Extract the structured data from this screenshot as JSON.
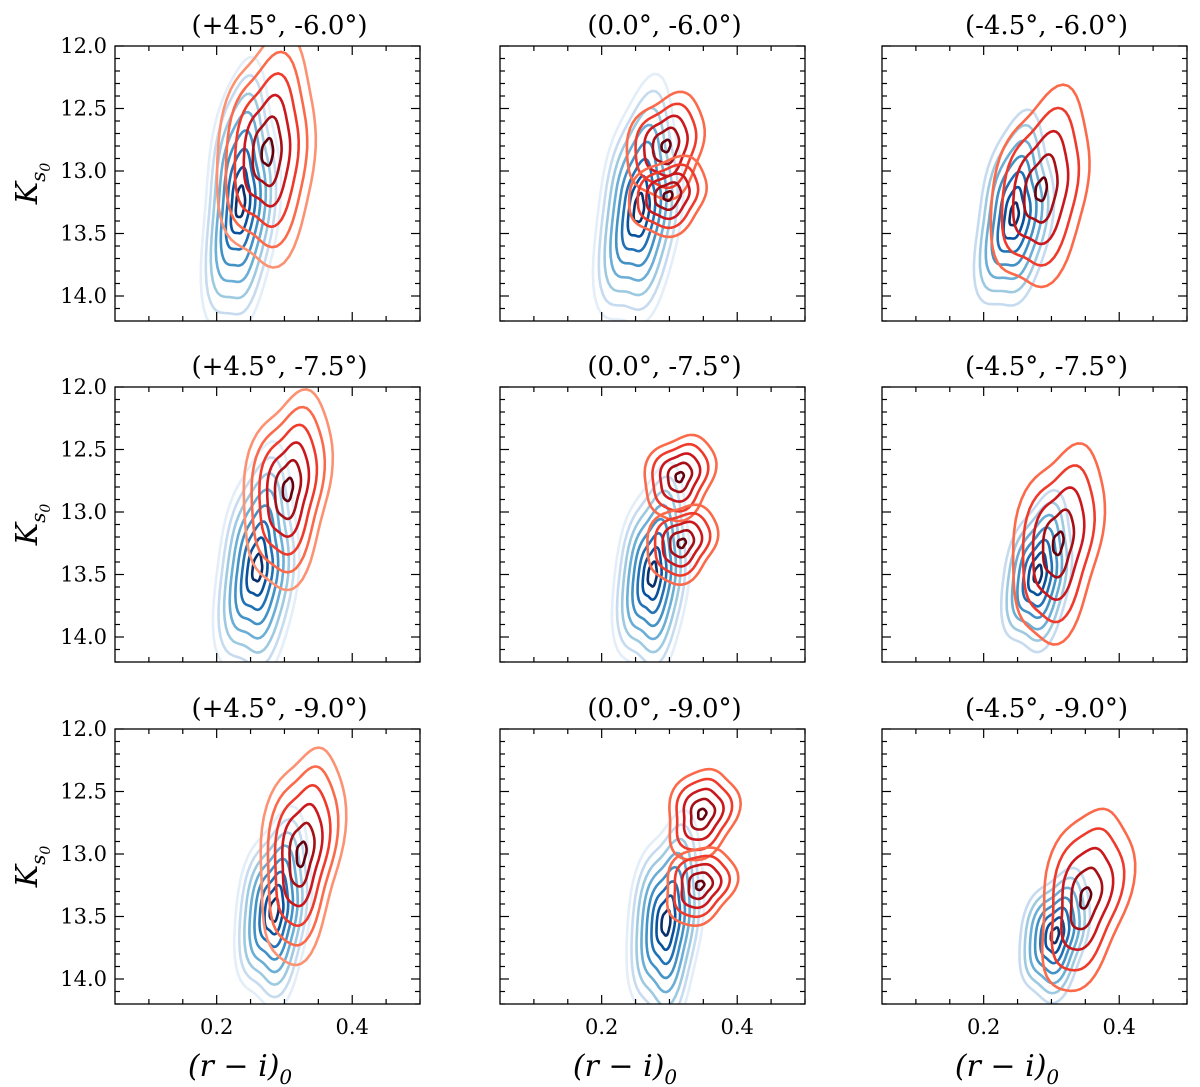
{
  "chart_data": {
    "type": "contour",
    "layout": "3x3 grid",
    "xlabel_main": "(r − i)",
    "xlabel_sub": "0",
    "ylabel_main": "K",
    "ylabel_sub": "s",
    "ylabel_subsub": "0",
    "xlim": [
      0.05,
      0.5
    ],
    "ylim": [
      14.2,
      12.0
    ],
    "xticks": [
      "0.2",
      "0.4"
    ],
    "yticks": [
      "12.0",
      "12.5",
      "13.0",
      "13.5",
      "14.0"
    ],
    "series": [
      {
        "name": "blue population",
        "colormap": "Blues",
        "colors": [
          "#e3eef9",
          "#c6dbef",
          "#9ecae1",
          "#6baed6",
          "#4292c6",
          "#2171b5",
          "#08519c",
          "#08306b"
        ]
      },
      {
        "name": "red population",
        "colormap": "Reds",
        "colors": [
          "#fee0d2",
          "#fcbba1",
          "#fc9272",
          "#fb6a4a",
          "#ef3b2c",
          "#cb181d",
          "#a50f15",
          "#67000d"
        ]
      }
    ],
    "panels": [
      {
        "title": "(+4.5°, -6.0°)",
        "blue": [
          {
            "cx": 0.235,
            "cy": 13.25,
            "sx": 0.022,
            "sy": 0.42,
            "rho": 0.25,
            "levels": 8
          }
        ],
        "red": [
          {
            "cx": 0.275,
            "cy": 12.85,
            "sx": 0.028,
            "sy": 0.35,
            "rho": 0.15,
            "levels": 6
          }
        ]
      },
      {
        "title": "(0.0°, -6.0°)",
        "blue": [
          {
            "cx": 0.255,
            "cy": 13.3,
            "sx": 0.025,
            "sy": 0.38,
            "rho": 0.3,
            "levels": 8
          }
        ],
        "red": [
          {
            "cx": 0.295,
            "cy": 12.8,
            "sx": 0.022,
            "sy": 0.16,
            "rho": 0.2,
            "levels": 5
          },
          {
            "cx": 0.298,
            "cy": 13.2,
            "sx": 0.022,
            "sy": 0.12,
            "rho": 0.2,
            "levels": 5
          }
        ]
      },
      {
        "title": "(-4.5°, -6.0°)",
        "blue": [
          {
            "cx": 0.245,
            "cy": 13.35,
            "sx": 0.022,
            "sy": 0.3,
            "rho": 0.3,
            "levels": 7
          }
        ],
        "red": [
          {
            "cx": 0.285,
            "cy": 13.15,
            "sx": 0.028,
            "sy": 0.3,
            "rho": 0.3,
            "levels": 5
          }
        ]
      },
      {
        "title": "(+4.5°, -7.5°)",
        "blue": [
          {
            "cx": 0.26,
            "cy": 13.45,
            "sx": 0.024,
            "sy": 0.36,
            "rho": 0.25,
            "levels": 8
          }
        ],
        "red": [
          {
            "cx": 0.305,
            "cy": 12.82,
            "sx": 0.025,
            "sy": 0.3,
            "rho": 0.25,
            "levels": 6
          }
        ]
      },
      {
        "title": "(0.0°, -7.5°)",
        "blue": [
          {
            "cx": 0.275,
            "cy": 13.5,
            "sx": 0.022,
            "sy": 0.32,
            "rho": 0.25,
            "levels": 8
          }
        ],
        "red": [
          {
            "cx": 0.315,
            "cy": 12.72,
            "sx": 0.02,
            "sy": 0.13,
            "rho": 0.2,
            "levels": 5
          },
          {
            "cx": 0.318,
            "cy": 13.25,
            "sx": 0.02,
            "sy": 0.12,
            "rho": 0.2,
            "levels": 5
          }
        ]
      },
      {
        "title": "(-4.5°, -7.5°)",
        "blue": [
          {
            "cx": 0.28,
            "cy": 13.5,
            "sx": 0.02,
            "sy": 0.24,
            "rho": 0.3,
            "levels": 7
          }
        ],
        "red": [
          {
            "cx": 0.31,
            "cy": 13.25,
            "sx": 0.026,
            "sy": 0.3,
            "rho": 0.3,
            "levels": 5
          }
        ]
      },
      {
        "title": "(+4.5°, -9.0°)",
        "blue": [
          {
            "cx": 0.285,
            "cy": 13.45,
            "sx": 0.022,
            "sy": 0.3,
            "rho": 0.25,
            "levels": 8
          }
        ],
        "red": [
          {
            "cx": 0.325,
            "cy": 13.0,
            "sx": 0.024,
            "sy": 0.33,
            "rho": 0.3,
            "levels": 6
          }
        ]
      },
      {
        "title": "(0.0°, -9.0°)",
        "blue": [
          {
            "cx": 0.295,
            "cy": 13.55,
            "sx": 0.022,
            "sy": 0.33,
            "rho": 0.25,
            "levels": 8
          }
        ],
        "red": [
          {
            "cx": 0.348,
            "cy": 12.68,
            "sx": 0.02,
            "sy": 0.14,
            "rho": 0.2,
            "levels": 5
          },
          {
            "cx": 0.345,
            "cy": 13.25,
            "sx": 0.02,
            "sy": 0.12,
            "rho": 0.2,
            "levels": 5
          }
        ]
      },
      {
        "title": "(-4.5°, -9.0°)",
        "blue": [
          {
            "cx": 0.305,
            "cy": 13.65,
            "sx": 0.02,
            "sy": 0.2,
            "rho": 0.3,
            "levels": 7
          }
        ],
        "red": [
          {
            "cx": 0.35,
            "cy": 13.35,
            "sx": 0.026,
            "sy": 0.28,
            "rho": 0.35,
            "levels": 5
          }
        ]
      }
    ]
  }
}
